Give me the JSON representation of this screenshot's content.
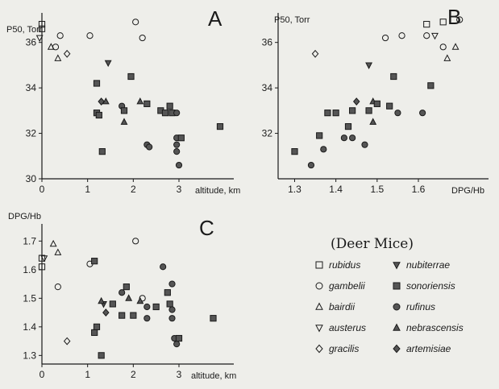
{
  "chart_data": [
    {
      "panel": "A",
      "type": "scatter",
      "panel_label": "A",
      "ylabel": "P50, Torr",
      "xlabel": "altitude, km",
      "xlim": [
        0,
        4.2
      ],
      "ylim": [
        30,
        37.3
      ],
      "xticks": [
        0,
        1,
        2,
        3
      ],
      "yticks": [
        30,
        32,
        34,
        36
      ],
      "points": [
        {
          "series": "rubidus",
          "x": 0.0,
          "y": 36.8
        },
        {
          "series": "rubidus",
          "x": 0.0,
          "y": 36.6
        },
        {
          "series": "austerus",
          "x": -0.05,
          "y": 36.2
        },
        {
          "series": "bairdii",
          "x": 0.2,
          "y": 35.8
        },
        {
          "series": "gambelii",
          "x": 0.3,
          "y": 35.8
        },
        {
          "series": "gambelii",
          "x": 0.4,
          "y": 36.3
        },
        {
          "series": "bairdii",
          "x": 0.35,
          "y": 35.3
        },
        {
          "series": "gracilis",
          "x": 0.55,
          "y": 35.5
        },
        {
          "series": "gambelii",
          "x": 1.05,
          "y": 36.3
        },
        {
          "series": "gambelii",
          "x": 2.05,
          "y": 36.9
        },
        {
          "series": "gambelii",
          "x": 2.2,
          "y": 36.2
        },
        {
          "series": "nubiterrae",
          "x": 1.45,
          "y": 35.1
        },
        {
          "series": "sonoriensis",
          "x": 1.2,
          "y": 34.2
        },
        {
          "series": "sonoriensis",
          "x": 1.2,
          "y": 32.9
        },
        {
          "series": "sonoriensis",
          "x": 1.25,
          "y": 32.8
        },
        {
          "series": "sonoriensis",
          "x": 1.32,
          "y": 31.2
        },
        {
          "series": "artemisiae",
          "x": 1.3,
          "y": 33.4
        },
        {
          "series": "nebrascensis",
          "x": 1.4,
          "y": 33.4
        },
        {
          "series": "sonoriensis",
          "x": 1.95,
          "y": 34.5
        },
        {
          "series": "rufinus",
          "x": 1.75,
          "y": 33.2
        },
        {
          "series": "sonoriensis",
          "x": 1.8,
          "y": 33.0
        },
        {
          "series": "nebrascensis",
          "x": 1.8,
          "y": 32.5
        },
        {
          "series": "nebrascensis",
          "x": 2.15,
          "y": 33.4
        },
        {
          "series": "sonoriensis",
          "x": 2.3,
          "y": 33.3
        },
        {
          "series": "sonoriensis",
          "x": 2.6,
          "y": 33.0
        },
        {
          "series": "sonoriensis",
          "x": 2.7,
          "y": 32.9
        },
        {
          "series": "sonoriensis",
          "x": 2.8,
          "y": 33.2
        },
        {
          "series": "sonoriensis",
          "x": 2.85,
          "y": 32.9
        },
        {
          "series": "rufinus",
          "x": 2.95,
          "y": 32.9
        },
        {
          "series": "rufinus",
          "x": 2.3,
          "y": 31.5
        },
        {
          "series": "rufinus",
          "x": 2.35,
          "y": 31.4
        },
        {
          "series": "rufinus",
          "x": 2.95,
          "y": 31.8
        },
        {
          "series": "rufinus",
          "x": 2.95,
          "y": 31.5
        },
        {
          "series": "rufinus",
          "x": 2.95,
          "y": 31.2
        },
        {
          "series": "rufinus",
          "x": 3.0,
          "y": 30.6
        },
        {
          "series": "sonoriensis",
          "x": 3.05,
          "y": 31.8
        },
        {
          "series": "sonoriensis",
          "x": 3.9,
          "y": 32.3
        }
      ]
    },
    {
      "panel": "B",
      "type": "scatter",
      "panel_label": "B",
      "ylabel": "P50, Torr",
      "xlabel": "DPG/Hb",
      "xlim": [
        1.26,
        1.77
      ],
      "ylim": [
        30,
        37.3
      ],
      "xticks": [
        1.3,
        1.4,
        1.5,
        1.6
      ],
      "yticks": [
        32,
        34,
        36
      ],
      "points": [
        {
          "series": "sonoriensis",
          "x": 1.3,
          "y": 31.2
        },
        {
          "series": "rufinus",
          "x": 1.34,
          "y": 30.6
        },
        {
          "series": "sonoriensis",
          "x": 1.36,
          "y": 31.9
        },
        {
          "series": "rufinus",
          "x": 1.37,
          "y": 31.3
        },
        {
          "series": "sonoriensis",
          "x": 1.38,
          "y": 32.9
        },
        {
          "series": "sonoriensis",
          "x": 1.4,
          "y": 32.9
        },
        {
          "series": "rufinus",
          "x": 1.42,
          "y": 31.8
        },
        {
          "series": "sonoriensis",
          "x": 1.43,
          "y": 32.3
        },
        {
          "series": "rufinus",
          "x": 1.44,
          "y": 31.8
        },
        {
          "series": "sonoriensis",
          "x": 1.44,
          "y": 33.0
        },
        {
          "series": "artemisiae",
          "x": 1.45,
          "y": 33.4
        },
        {
          "series": "rufinus",
          "x": 1.47,
          "y": 31.5
        },
        {
          "series": "sonoriensis",
          "x": 1.48,
          "y": 33.0
        },
        {
          "series": "nebrascensis",
          "x": 1.49,
          "y": 32.5
        },
        {
          "series": "nebrascensis",
          "x": 1.49,
          "y": 33.4
        },
        {
          "series": "sonoriensis",
          "x": 1.5,
          "y": 33.3
        },
        {
          "series": "nubiterrae",
          "x": 1.48,
          "y": 35.0
        },
        {
          "series": "gracilis",
          "x": 1.35,
          "y": 35.5
        },
        {
          "series": "sonoriensis",
          "x": 1.53,
          "y": 33.2
        },
        {
          "series": "sonoriensis",
          "x": 1.54,
          "y": 34.5
        },
        {
          "series": "rufinus",
          "x": 1.55,
          "y": 32.9
        },
        {
          "series": "gambelii",
          "x": 1.52,
          "y": 36.2
        },
        {
          "series": "gambelii",
          "x": 1.56,
          "y": 36.3
        },
        {
          "series": "rufinus",
          "x": 1.61,
          "y": 32.9
        },
        {
          "series": "sonoriensis",
          "x": 1.63,
          "y": 34.1
        },
        {
          "series": "rubidus",
          "x": 1.62,
          "y": 36.8
        },
        {
          "series": "gambelii",
          "x": 1.62,
          "y": 36.3
        },
        {
          "series": "austerus",
          "x": 1.64,
          "y": 36.3
        },
        {
          "series": "rubidus",
          "x": 1.66,
          "y": 36.9
        },
        {
          "series": "gambelii",
          "x": 1.66,
          "y": 35.8
        },
        {
          "series": "bairdii",
          "x": 1.67,
          "y": 35.3
        },
        {
          "series": "gambelii",
          "x": 1.7,
          "y": 37.0
        },
        {
          "series": "bairdii",
          "x": 1.69,
          "y": 35.8
        }
      ]
    },
    {
      "panel": "C",
      "type": "scatter",
      "panel_label": "C",
      "ylabel": "DPG/Hb",
      "xlabel": "altitude, km",
      "xlim": [
        0,
        4.2
      ],
      "ylim": [
        1.27,
        1.76
      ],
      "xticks": [
        0,
        1,
        2,
        3
      ],
      "yticks": [
        1.3,
        1.4,
        1.5,
        1.6,
        1.7
      ],
      "points": [
        {
          "series": "rubidus",
          "x": 0.0,
          "y": 1.64
        },
        {
          "series": "rubidus",
          "x": 0.0,
          "y": 1.61
        },
        {
          "series": "austerus",
          "x": 0.05,
          "y": 1.64
        },
        {
          "series": "bairdii",
          "x": 0.25,
          "y": 1.69
        },
        {
          "series": "bairdii",
          "x": 0.35,
          "y": 1.66
        },
        {
          "series": "gambelii",
          "x": 0.35,
          "y": 1.54
        },
        {
          "series": "gracilis",
          "x": 0.55,
          "y": 1.35
        },
        {
          "series": "gambelii",
          "x": 1.05,
          "y": 1.62
        },
        {
          "series": "sonoriensis",
          "x": 1.15,
          "y": 1.63
        },
        {
          "series": "sonoriensis",
          "x": 1.15,
          "y": 1.38
        },
        {
          "series": "sonoriensis",
          "x": 1.2,
          "y": 1.4
        },
        {
          "series": "sonoriensis",
          "x": 1.3,
          "y": 1.3
        },
        {
          "series": "nubiterrae",
          "x": 1.35,
          "y": 1.48
        },
        {
          "series": "nebrascensis",
          "x": 1.3,
          "y": 1.49
        },
        {
          "series": "artemisiae",
          "x": 1.4,
          "y": 1.45
        },
        {
          "series": "sonoriensis",
          "x": 1.55,
          "y": 1.48
        },
        {
          "series": "rufinus",
          "x": 1.75,
          "y": 1.52
        },
        {
          "series": "sonoriensis",
          "x": 1.75,
          "y": 1.44
        },
        {
          "series": "sonoriensis",
          "x": 1.85,
          "y": 1.54
        },
        {
          "series": "nebrascensis",
          "x": 1.9,
          "y": 1.5
        },
        {
          "series": "gambelii",
          "x": 2.05,
          "y": 1.7
        },
        {
          "series": "gambelii",
          "x": 2.2,
          "y": 1.5
        },
        {
          "series": "nebrascensis",
          "x": 2.15,
          "y": 1.49
        },
        {
          "series": "sonoriensis",
          "x": 2.0,
          "y": 1.44
        },
        {
          "series": "rufinus",
          "x": 2.3,
          "y": 1.47
        },
        {
          "series": "rufinus",
          "x": 2.3,
          "y": 1.43
        },
        {
          "series": "sonoriensis",
          "x": 2.5,
          "y": 1.47
        },
        {
          "series": "rufinus",
          "x": 2.65,
          "y": 1.61
        },
        {
          "series": "sonoriensis",
          "x": 2.75,
          "y": 1.52
        },
        {
          "series": "sonoriensis",
          "x": 2.8,
          "y": 1.48
        },
        {
          "series": "rufinus",
          "x": 2.85,
          "y": 1.55
        },
        {
          "series": "rufinus",
          "x": 2.85,
          "y": 1.46
        },
        {
          "series": "rufinus",
          "x": 2.85,
          "y": 1.43
        },
        {
          "series": "rufinus",
          "x": 2.9,
          "y": 1.36
        },
        {
          "series": "rufinus",
          "x": 2.95,
          "y": 1.34
        },
        {
          "series": "sonoriensis",
          "x": 3.0,
          "y": 1.36
        },
        {
          "series": "sonoriensis",
          "x": 3.75,
          "y": 1.43
        }
      ]
    }
  ],
  "legend": {
    "title": "(Deer Mice)",
    "entries": [
      {
        "key": "rubidus",
        "label": "rubidus",
        "marker": "square-open"
      },
      {
        "key": "gambelii",
        "label": "gambelii",
        "marker": "circle-open"
      },
      {
        "key": "bairdii",
        "label": "bairdii",
        "marker": "triangle-up-open"
      },
      {
        "key": "austerus",
        "label": "austerus",
        "marker": "triangle-down-open"
      },
      {
        "key": "gracilis",
        "label": "gracilis",
        "marker": "diamond-open"
      },
      {
        "key": "nubiterrae",
        "label": "nubiterrae",
        "marker": "triangle-down-filled"
      },
      {
        "key": "sonoriensis",
        "label": "sonoriensis",
        "marker": "square-filled"
      },
      {
        "key": "rufinus",
        "label": "rufinus",
        "marker": "circle-filled"
      },
      {
        "key": "nebrascensis",
        "label": "nebrascensis",
        "marker": "triangle-up-filled"
      },
      {
        "key": "artemisiae",
        "label": "artemisiae",
        "marker": "diamond-filled"
      }
    ]
  },
  "colors": {
    "ink": "#1a1a1a",
    "paper": "#eeeeea",
    "filled_marker": "#555555"
  }
}
